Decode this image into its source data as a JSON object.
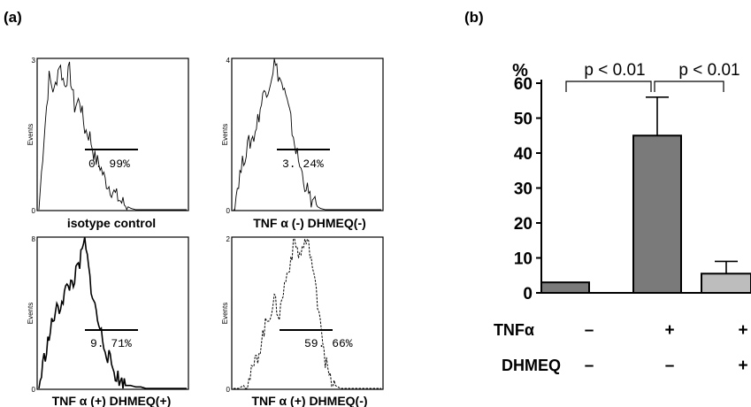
{
  "chart_data": [
    {
      "type": "histogram",
      "panel_label": "(a)",
      "ylabel": "Events",
      "subplots": [
        {
          "caption": "isotype control",
          "ymax_label": "3",
          "ymin_label": "0",
          "percent": "0. 99%",
          "line_style": "solid-thin",
          "profile": [
            0,
            0.5,
            0.9,
            0.8,
            1.0,
            0.85,
            0.95,
            0.7,
            0.75,
            0.55,
            0.5,
            0.35,
            0.3,
            0.2,
            0.15,
            0.1,
            0.06,
            0.03,
            0.01,
            0,
            0,
            0,
            0,
            0,
            0,
            0,
            0,
            0,
            0,
            0
          ]
        },
        {
          "caption": "TNF α (-) DHMEQ(-)",
          "ymax_label": "4",
          "ymin_label": "0",
          "percent": "3. 24%",
          "line_style": "solid-thin",
          "profile": [
            0,
            0.2,
            0.35,
            0.45,
            0.5,
            0.65,
            0.8,
            0.85,
            1.0,
            0.9,
            0.8,
            0.65,
            0.45,
            0.3,
            0.18,
            0.08,
            0.03,
            0.01,
            0,
            0,
            0,
            0,
            0,
            0,
            0,
            0,
            0,
            0,
            0,
            0
          ]
        },
        {
          "caption": "TNF α (+) DHMEQ(+)",
          "ymax_label": "8",
          "ymin_label": "0",
          "percent": "9. 71%",
          "line_style": "solid-thick",
          "profile": [
            0,
            0.2,
            0.35,
            0.5,
            0.55,
            0.65,
            0.7,
            0.75,
            0.85,
            1.0,
            0.75,
            0.55,
            0.4,
            0.28,
            0.18,
            0.1,
            0.05,
            0.02,
            0.02,
            0.01,
            0.01,
            0,
            0,
            0,
            0,
            0,
            0,
            0,
            0,
            0
          ]
        },
        {
          "caption": "TNF α (+) DHMEQ(-)",
          "ymax_label": "2",
          "ymin_label": "0",
          "percent": "59. 66%",
          "line_style": "dashed",
          "profile": [
            0,
            0,
            0.02,
            0.05,
            0.15,
            0.25,
            0.4,
            0.5,
            0.6,
            0.5,
            0.7,
            0.85,
            1.0,
            0.9,
            1.0,
            0.95,
            0.7,
            0.5,
            0.2,
            0.05,
            0.02,
            0,
            0,
            0,
            0,
            0,
            0,
            0,
            0,
            0
          ]
        }
      ]
    },
    {
      "type": "bar",
      "panel_label": "(b)",
      "ylabel": "%",
      "ylim": [
        0,
        60
      ],
      "yticks": [
        "0",
        "10",
        "20",
        "30",
        "40",
        "50",
        "60"
      ],
      "values": [
        3,
        45,
        5.5
      ],
      "errors": [
        0,
        11,
        3.5
      ],
      "colors": [
        "#7a7a7a",
        "#7a7a7a",
        "#bdbdbd"
      ],
      "annotations": [
        "p < 0.01",
        "p < 0.01"
      ],
      "conditions": [
        {
          "name": "TNFα",
          "values": [
            "–",
            "+",
            "+"
          ]
        },
        {
          "name": "DHMEQ",
          "values": [
            "–",
            "–",
            "+"
          ]
        }
      ]
    }
  ]
}
